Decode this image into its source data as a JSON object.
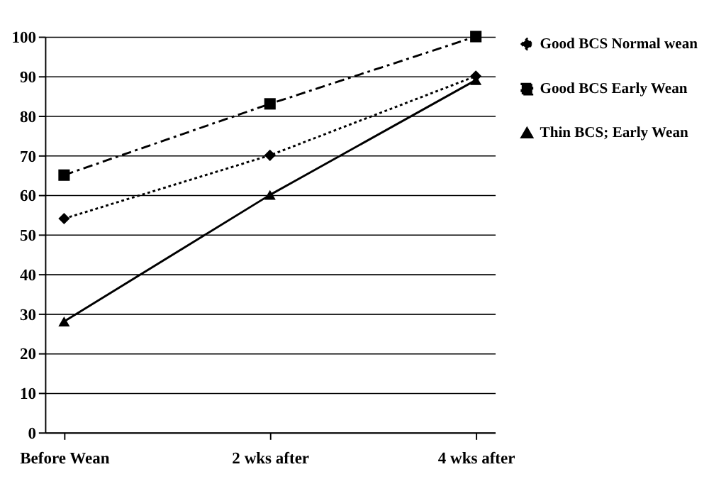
{
  "chart_data": {
    "type": "line",
    "categories": [
      "Before Wean",
      "2 wks after",
      "4 wks after"
    ],
    "series": [
      {
        "name": "Good BCS Normal wean",
        "color": "#000000",
        "values": [
          54,
          70,
          90
        ],
        "marker": "diamond",
        "line_style": "dotted"
      },
      {
        "name": "Good BCS Early Wean",
        "color": "#000000",
        "values": [
          65,
          83,
          100
        ],
        "marker": "square",
        "line_style": "dashed"
      },
      {
        "name": "Thin BCS; Early Wean",
        "color": "#000000",
        "values": [
          28,
          60,
          89
        ],
        "marker": "triangle",
        "line_style": "solid"
      }
    ],
    "ylim": [
      0,
      100
    ],
    "yticks": [
      0,
      10,
      20,
      30,
      40,
      50,
      60,
      70,
      80,
      90,
      100
    ],
    "grid": "y",
    "legend": "right"
  }
}
